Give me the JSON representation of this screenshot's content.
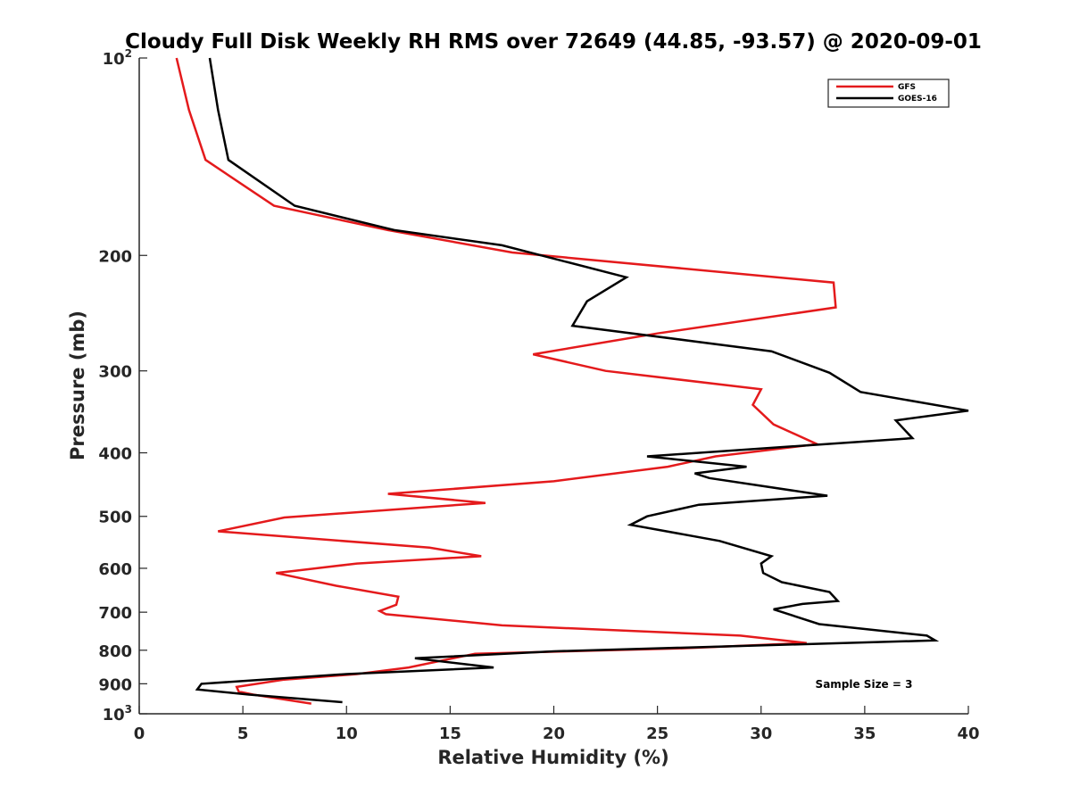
{
  "chart_data": {
    "type": "line",
    "title": "Cloudy Full Disk Weekly RH RMS over 72649 (44.85, -93.57) @ 2020-09-01",
    "xlabel": "Relative Humidity (%)",
    "ylabel": "Pressure (mb)",
    "xlim": [
      0,
      40
    ],
    "ylim": [
      100,
      1000
    ],
    "y_scale": "log",
    "y_reversed": true,
    "grid": false,
    "legend_position": "top-right",
    "annotation": "Sample Size = 3",
    "x_ticks": [
      "0",
      "5",
      "10",
      "15",
      "20",
      "25",
      "30",
      "35",
      "40"
    ],
    "y_ticks": [
      {
        "value": 100,
        "label": "10",
        "exp": "2"
      },
      {
        "value": 200,
        "label": "200"
      },
      {
        "value": 300,
        "label": "300"
      },
      {
        "value": 400,
        "label": "400"
      },
      {
        "value": 500,
        "label": "500"
      },
      {
        "value": 600,
        "label": "600"
      },
      {
        "value": 700,
        "label": "700"
      },
      {
        "value": 800,
        "label": "800"
      },
      {
        "value": 900,
        "label": "900"
      },
      {
        "value": 1000,
        "label": "10",
        "exp": "3"
      }
    ],
    "series": [
      {
        "name": "GFS",
        "color": "#e41a1c",
        "points": [
          [
            1.8,
            100
          ],
          [
            2.4,
            120
          ],
          [
            3.2,
            143
          ],
          [
            6.5,
            168
          ],
          [
            12.0,
            183
          ],
          [
            18.0,
            198
          ],
          [
            33.5,
            220
          ],
          [
            33.6,
            240
          ],
          [
            25.0,
            263
          ],
          [
            19.0,
            283
          ],
          [
            22.5,
            300
          ],
          [
            30.0,
            320
          ],
          [
            29.6,
            338
          ],
          [
            30.6,
            362
          ],
          [
            32.7,
            388
          ],
          [
            27.8,
            405
          ],
          [
            25.5,
            420
          ],
          [
            20.0,
            442
          ],
          [
            12.0,
            462
          ],
          [
            16.7,
            477
          ],
          [
            7.0,
            502
          ],
          [
            3.8,
            527
          ],
          [
            14.0,
            558
          ],
          [
            16.5,
            575
          ],
          [
            10.5,
            590
          ],
          [
            6.6,
            610
          ],
          [
            9.5,
            638
          ],
          [
            12.5,
            663
          ],
          [
            12.4,
            682
          ],
          [
            11.6,
            697
          ],
          [
            11.9,
            705
          ],
          [
            17.5,
            733
          ],
          [
            29.0,
            760
          ],
          [
            32.2,
            780
          ],
          [
            26.0,
            795
          ],
          [
            16.2,
            810
          ],
          [
            13.0,
            850
          ],
          [
            10.5,
            870
          ],
          [
            7.0,
            887
          ],
          [
            4.7,
            910
          ],
          [
            4.8,
            925
          ],
          [
            5.5,
            935
          ],
          [
            8.3,
            965
          ]
        ]
      },
      {
        "name": "GOES-16",
        "color": "#000000",
        "points": [
          [
            3.4,
            100
          ],
          [
            3.8,
            120
          ],
          [
            4.3,
            143
          ],
          [
            7.5,
            168
          ],
          [
            12.3,
            183
          ],
          [
            17.5,
            193
          ],
          [
            23.5,
            216
          ],
          [
            21.6,
            235
          ],
          [
            20.9,
            256
          ],
          [
            30.5,
            280
          ],
          [
            33.3,
            302
          ],
          [
            34.8,
            323
          ],
          [
            40.0,
            345
          ],
          [
            36.5,
            357
          ],
          [
            37.3,
            380
          ],
          [
            24.5,
            405
          ],
          [
            29.3,
            420
          ],
          [
            26.8,
            430
          ],
          [
            27.5,
            437
          ],
          [
            33.2,
            465
          ],
          [
            27.0,
            480
          ],
          [
            24.5,
            500
          ],
          [
            23.7,
            515
          ],
          [
            28.0,
            545
          ],
          [
            30.5,
            575
          ],
          [
            30.0,
            590
          ],
          [
            30.1,
            610
          ],
          [
            31.0,
            630
          ],
          [
            33.3,
            652
          ],
          [
            33.7,
            673
          ],
          [
            32.0,
            680
          ],
          [
            30.6,
            693
          ],
          [
            32.8,
            730
          ],
          [
            38.0,
            760
          ],
          [
            38.4,
            773
          ],
          [
            20.0,
            803
          ],
          [
            13.3,
            823
          ],
          [
            17.1,
            850
          ],
          [
            10.0,
            870
          ],
          [
            3.0,
            900
          ],
          [
            2.8,
            918
          ],
          [
            5.3,
            935
          ],
          [
            9.8,
            960
          ]
        ]
      }
    ]
  }
}
